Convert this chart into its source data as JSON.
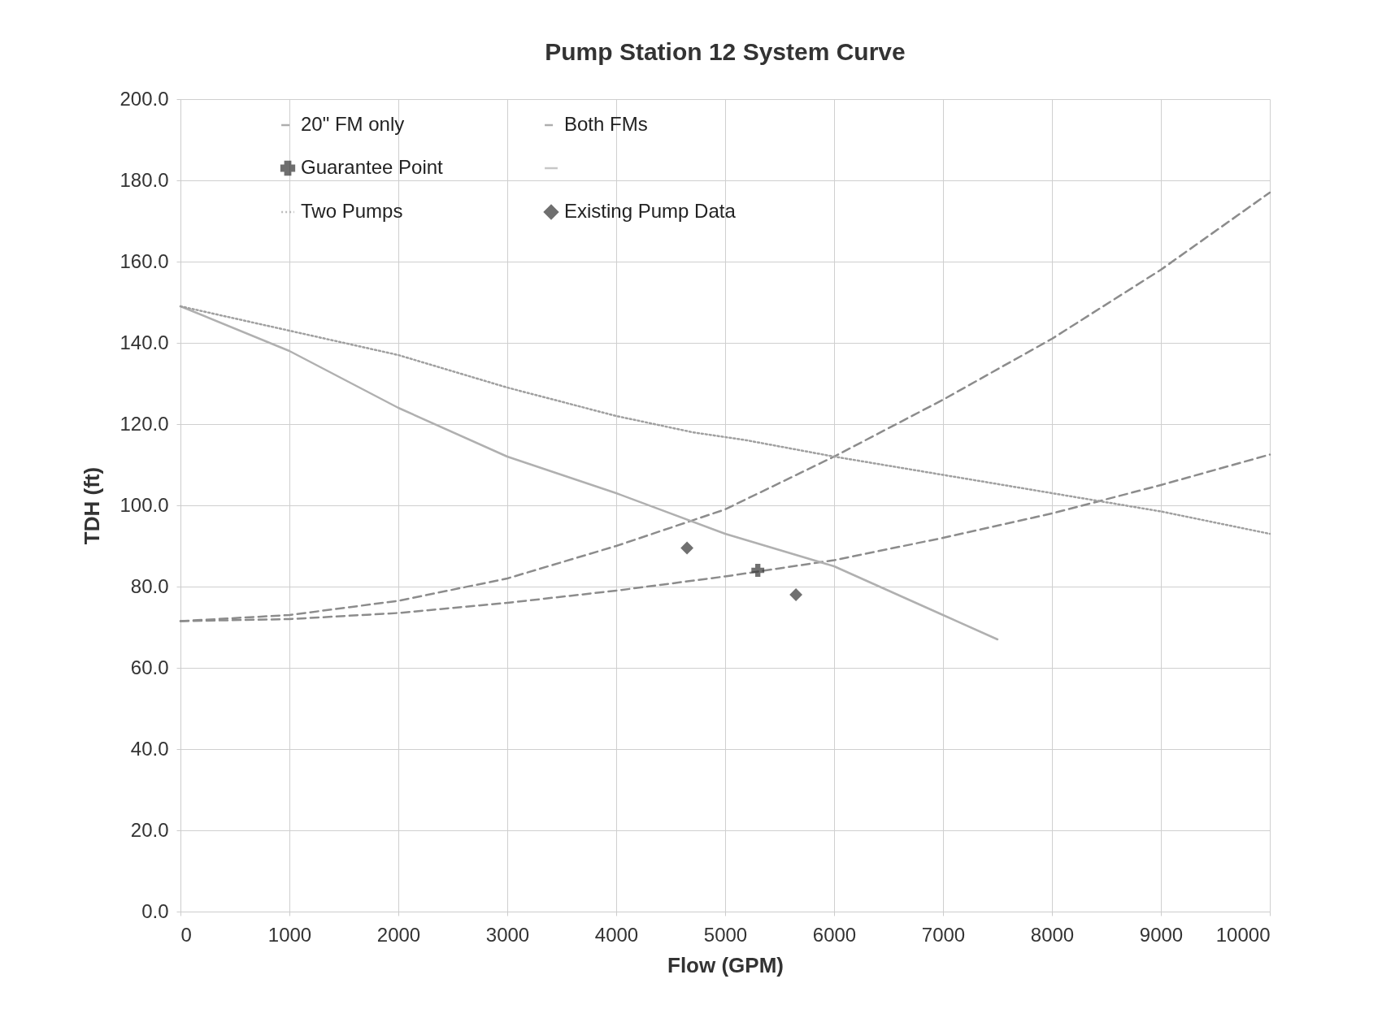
{
  "chart_data": {
    "type": "line",
    "title": "Pump Station 12 System Curve",
    "xlabel": "Flow (GPM)",
    "ylabel": "TDH (ft)",
    "xlim": [
      0,
      10000
    ],
    "xticks": [
      0,
      1000,
      2000,
      3000,
      4000,
      5000,
      6000,
      7000,
      8000,
      9000,
      10000
    ],
    "ylim": [
      0,
      200
    ],
    "yticks": [
      {
        "value": 0,
        "label": "0.0"
      },
      {
        "value": 20,
        "label": "20.0"
      },
      {
        "value": 40,
        "label": "40.0"
      },
      {
        "value": 60,
        "label": "60.0"
      },
      {
        "value": 80,
        "label": "80.0"
      },
      {
        "value": 100,
        "label": "100.0"
      },
      {
        "value": 120,
        "label": "120.0"
      },
      {
        "value": 140,
        "label": "140.0"
      },
      {
        "value": 160,
        "label": "160.0"
      },
      {
        "value": 180,
        "label": "180.0"
      },
      {
        "value": 200,
        "label": "200.0"
      }
    ],
    "grid": true,
    "legend": "top",
    "series": [
      {
        "name": "20\" FM only",
        "type": "line",
        "line_style": "dashed",
        "color": "#8c8c8c",
        "x": [
          0,
          1000,
          2000,
          3000,
          4000,
          5000,
          6000,
          7000,
          8000,
          9000,
          10000
        ],
        "values": [
          71.5,
          73,
          76.5,
          82,
          90,
          99,
          112,
          126,
          141,
          158,
          177
        ]
      },
      {
        "name": "Both FMs",
        "type": "line",
        "line_style": "dashed",
        "color": "#8c8c8c",
        "x": [
          0,
          1000,
          2000,
          3000,
          4000,
          5000,
          6000,
          7000,
          8000,
          9000,
          10000
        ],
        "values": [
          71.5,
          72,
          73.5,
          76,
          79,
          82.5,
          86.5,
          92,
          98,
          105,
          112.5
        ]
      },
      {
        "name": "Guarantee Point",
        "type": "scatter",
        "marker": "cross",
        "color": "#333333",
        "x": [
          5300
        ],
        "values": [
          84
        ]
      },
      {
        "type": "line",
        "line_style": "solid",
        "color": "#b0b0b0",
        "x": [
          0,
          1000,
          2000,
          3000,
          4000,
          5000,
          6000,
          7000,
          7500
        ],
        "values": [
          149,
          138,
          124,
          112,
          103,
          93,
          85,
          73,
          67
        ]
      },
      {
        "name": "Two Pumps",
        "type": "line",
        "line_style": "dotted",
        "color": "#a0a0a0",
        "x": [
          0,
          1000,
          2000,
          3000,
          4000,
          4700,
          5200,
          6000,
          7000,
          8000,
          9000,
          10000
        ],
        "values": [
          149,
          143,
          137,
          129,
          122,
          118,
          116,
          112,
          107.5,
          103,
          98.5,
          93
        ]
      },
      {
        "name": "Existing Pump Data",
        "type": "scatter",
        "marker": "diamond",
        "color": "#333333",
        "x": [
          4650,
          5650
        ],
        "values": [
          89.5,
          78
        ]
      }
    ]
  }
}
